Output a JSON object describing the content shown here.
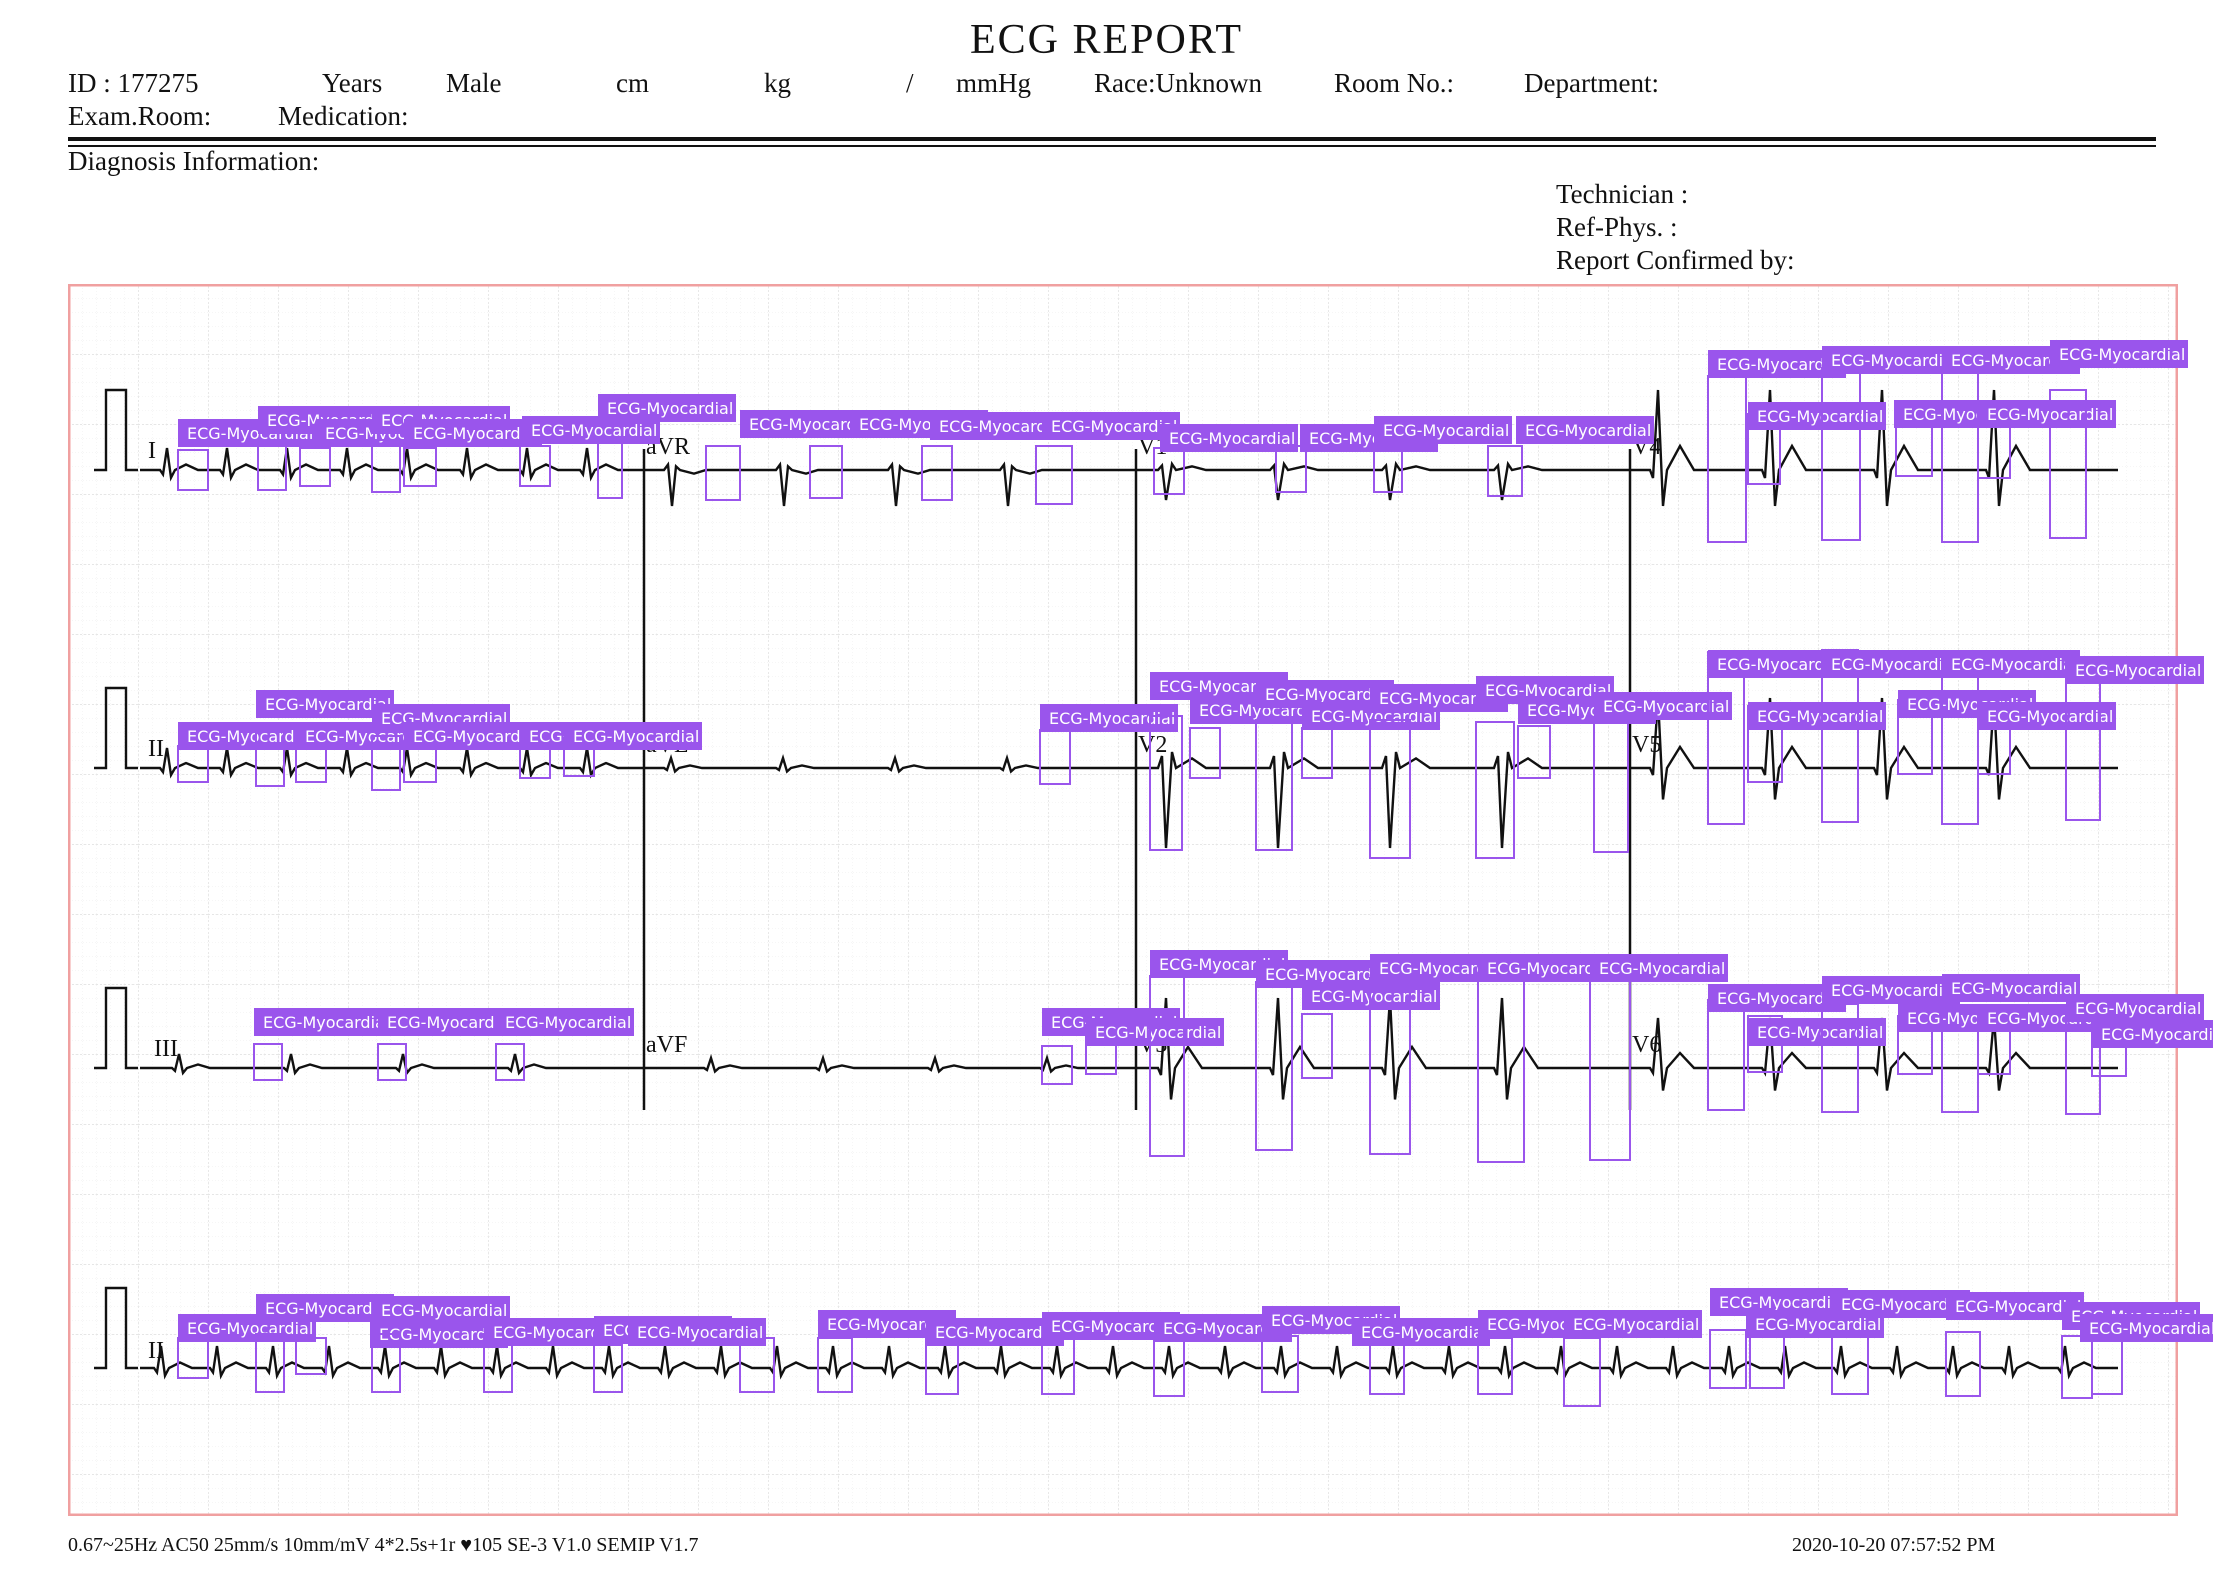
{
  "report": {
    "title": "ECG REPORT",
    "id": "ID : 177275",
    "years": "Years",
    "sex": "Male",
    "height_unit": "cm",
    "weight_unit": "kg",
    "bp_separator": "/",
    "bp_unit": "mmHg",
    "race": "Race:Unknown",
    "room": "Room No.:",
    "department": "Department:",
    "exam_room": "Exam.Room:",
    "medication": "Medication:",
    "diagnosis": "Diagnosis Information:",
    "technician": "Technician :",
    "ref_phys": "Ref-Phys. :",
    "confirmed_by": "Report Confirmed by:"
  },
  "leads": {
    "row1": [
      "I",
      "aVR",
      "V1",
      "V4"
    ],
    "row2": [
      "II",
      "aVL",
      "V2",
      "V5"
    ],
    "row3": [
      "III",
      "aVF",
      "V3",
      "V6"
    ],
    "rhythm": "II"
  },
  "footer": {
    "settings": "0.67~25Hz  AC50  25mm/s  10mm/mV  4*2.5s+1r  ♥105  SE-3  V1.0  SEMIP  V1.7",
    "datetime": "2020-10-20    07:57:52  PM"
  },
  "annotation_label": "ECG-Myocardial",
  "colors": {
    "grid_border": "#f0a0a0",
    "grid_major": "#dcdcdc",
    "grid_minor": "#ececec",
    "trace": "#111111",
    "annotation": "#9a55ec"
  }
}
